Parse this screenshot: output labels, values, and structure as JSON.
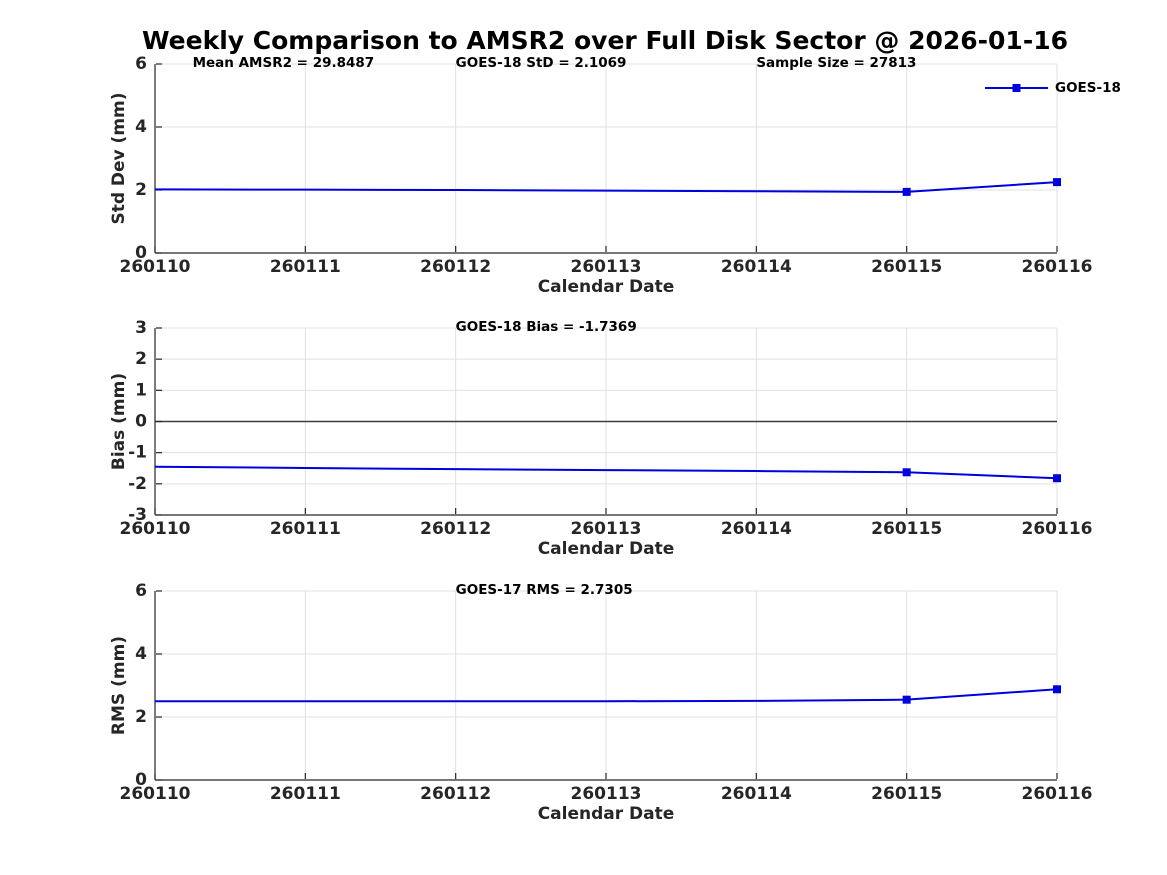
{
  "figure": {
    "title": "Weekly Comparison to AMSR2 over Full Disk Sector @ 2026-01-16",
    "background": "#FFFFFF"
  },
  "colors": {
    "line_blue": "#0000DD",
    "grid": "#E0E0E0",
    "axis": "#262626",
    "zero_line": "#3C3C3C",
    "text": "#000000"
  },
  "chart_data": [
    {
      "type": "line",
      "subplot": "std-dev",
      "ylabel": "Std Dev (mm)",
      "xlabel": "Calendar Date",
      "ylim": [
        0,
        6
      ],
      "yticks": [
        0,
        2,
        4,
        6
      ],
      "categories": [
        "260110",
        "260111",
        "260112",
        "260113",
        "260114",
        "260115",
        "260116"
      ],
      "grid": true,
      "zero_line": false,
      "annotations": [
        {
          "text": "Mean AMSR2 = 29.8487",
          "x_days": 0.25
        },
        {
          "text": "GOES-18 StD = 2.1069",
          "x_days": 2.0
        },
        {
          "text": "Sample Size = 27813",
          "x_days": 4.0
        }
      ],
      "legend": {
        "position": "top-right",
        "entries": [
          "GOES-18"
        ]
      },
      "series": [
        {
          "name": "GOES-18",
          "color": "#0000DD",
          "marker": "square",
          "marker_indices": [
            5,
            6
          ],
          "values": [
            2.02,
            2.01,
            2.0,
            1.98,
            1.96,
            1.94,
            2.25
          ]
        }
      ]
    },
    {
      "type": "line",
      "subplot": "bias",
      "ylabel": "Bias (mm)",
      "xlabel": "Calendar Date",
      "ylim": [
        -3,
        3
      ],
      "yticks": [
        -3,
        -2,
        -1,
        0,
        1,
        2,
        3
      ],
      "categories": [
        "260110",
        "260111",
        "260112",
        "260113",
        "260114",
        "260115",
        "260116"
      ],
      "grid": true,
      "zero_line": true,
      "annotations": [
        {
          "text": "GOES-18 Bias  = -1.7369",
          "x_days": 2.0
        }
      ],
      "legend": null,
      "series": [
        {
          "name": "GOES-18",
          "color": "#0000DD",
          "marker": "square",
          "marker_indices": [
            5,
            6
          ],
          "values": [
            -1.45,
            -1.49,
            -1.53,
            -1.56,
            -1.59,
            -1.63,
            -1.82
          ]
        }
      ]
    },
    {
      "type": "line",
      "subplot": "rms",
      "ylabel": "RMS (mm)",
      "xlabel": "Calendar Date",
      "ylim": [
        0,
        6
      ],
      "yticks": [
        0,
        2,
        4,
        6
      ],
      "categories": [
        "260110",
        "260111",
        "260112",
        "260113",
        "260114",
        "260115",
        "260116"
      ],
      "grid": true,
      "zero_line": false,
      "annotations": [
        {
          "text": "GOES-17 RMS = 2.7305",
          "x_days": 2.0
        }
      ],
      "legend": null,
      "series": [
        {
          "name": "GOES-18",
          "color": "#0000DD",
          "marker": "square",
          "marker_indices": [
            5,
            6
          ],
          "values": [
            2.5,
            2.5,
            2.5,
            2.5,
            2.51,
            2.55,
            2.88
          ]
        }
      ]
    }
  ]
}
